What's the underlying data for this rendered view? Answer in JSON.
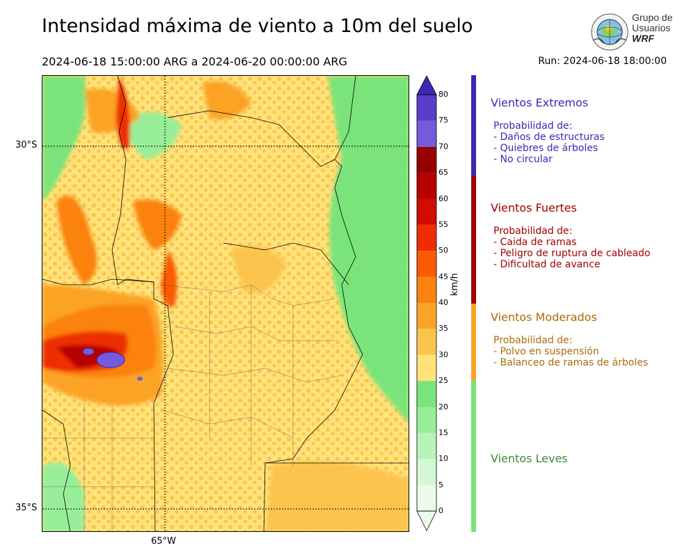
{
  "header": {
    "title": "Intensidad máxima de viento a 10m del suelo",
    "period": "2024-06-18 15:00:00 ARG  a  2024-06-20 00:00:00 ARG",
    "run": "Run: 2024-06-18 18:00:00"
  },
  "logo": {
    "line1": "Grupo de",
    "line2": "Usuarios",
    "line3": "WRF"
  },
  "map": {
    "lat_labels": [
      "30°S",
      "35°S"
    ],
    "lon_labels": [
      "65°W"
    ]
  },
  "colorbar": {
    "unit": "km/h",
    "ticks": [
      "0",
      "5",
      "10",
      "15",
      "20",
      "25",
      "30",
      "35",
      "40",
      "45",
      "50",
      "55",
      "60",
      "65",
      "70",
      "75",
      "80"
    ],
    "colors": [
      "#ebfceb",
      "#d3f8d3",
      "#b8f3b8",
      "#98ee98",
      "#7ae47a",
      "#ffe27a",
      "#fbc54d",
      "#fca327",
      "#fb8211",
      "#fb5a00",
      "#ee2d00",
      "#d30c00",
      "#b60000",
      "#960000",
      "#735bdb",
      "#5a3ccb",
      "#4126b8"
    ]
  },
  "categories": [
    {
      "title": "Vientos Extremos",
      "color": "#3c28b4",
      "lines": [
        "Probabilidad de:",
        "- Daños de estructuras",
        "- Quiebres de árboles",
        "- No circular"
      ]
    },
    {
      "title": "Vientos Fuertes",
      "color": "#a00000",
      "lines": [
        "Probabilidad de:",
        "- Caida de ramas",
        "- Peligro de ruptura de cableado",
        "- Dificultad de avance"
      ]
    },
    {
      "title": "Vientos Moderados",
      "color": "#a86c0c",
      "lines": [
        "Probabilidad de:",
        "- Polvo en suspensión",
        "- Balanceo de ramas de árboles"
      ]
    },
    {
      "title": "Vientos Leves",
      "color": "#3a8a3a",
      "lines": []
    }
  ]
}
